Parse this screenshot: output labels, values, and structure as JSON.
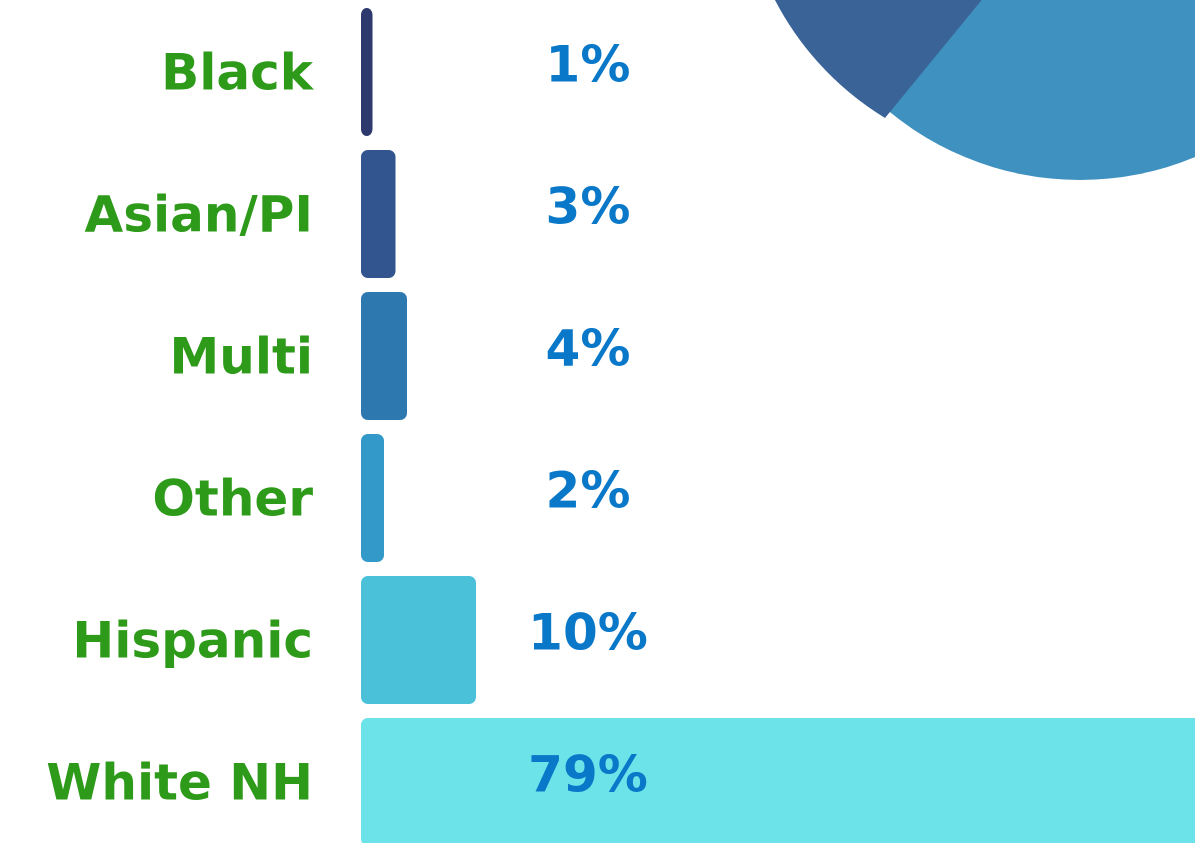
{
  "chart_data": {
    "type": "bar",
    "orientation": "horizontal",
    "categories": [
      "Black",
      "Asian/PI",
      "Multi",
      "Other",
      "Hispanic",
      "White NH"
    ],
    "values": [
      1,
      3,
      4,
      2,
      10,
      79
    ],
    "value_labels": [
      "1%",
      "3%",
      "4%",
      "2%",
      "10%",
      "79%"
    ],
    "colors": [
      "#2e3a6e",
      "#33558f",
      "#2e78b0",
      "#3399c8",
      "#4bc1d9",
      "#6be3e9"
    ]
  }
}
